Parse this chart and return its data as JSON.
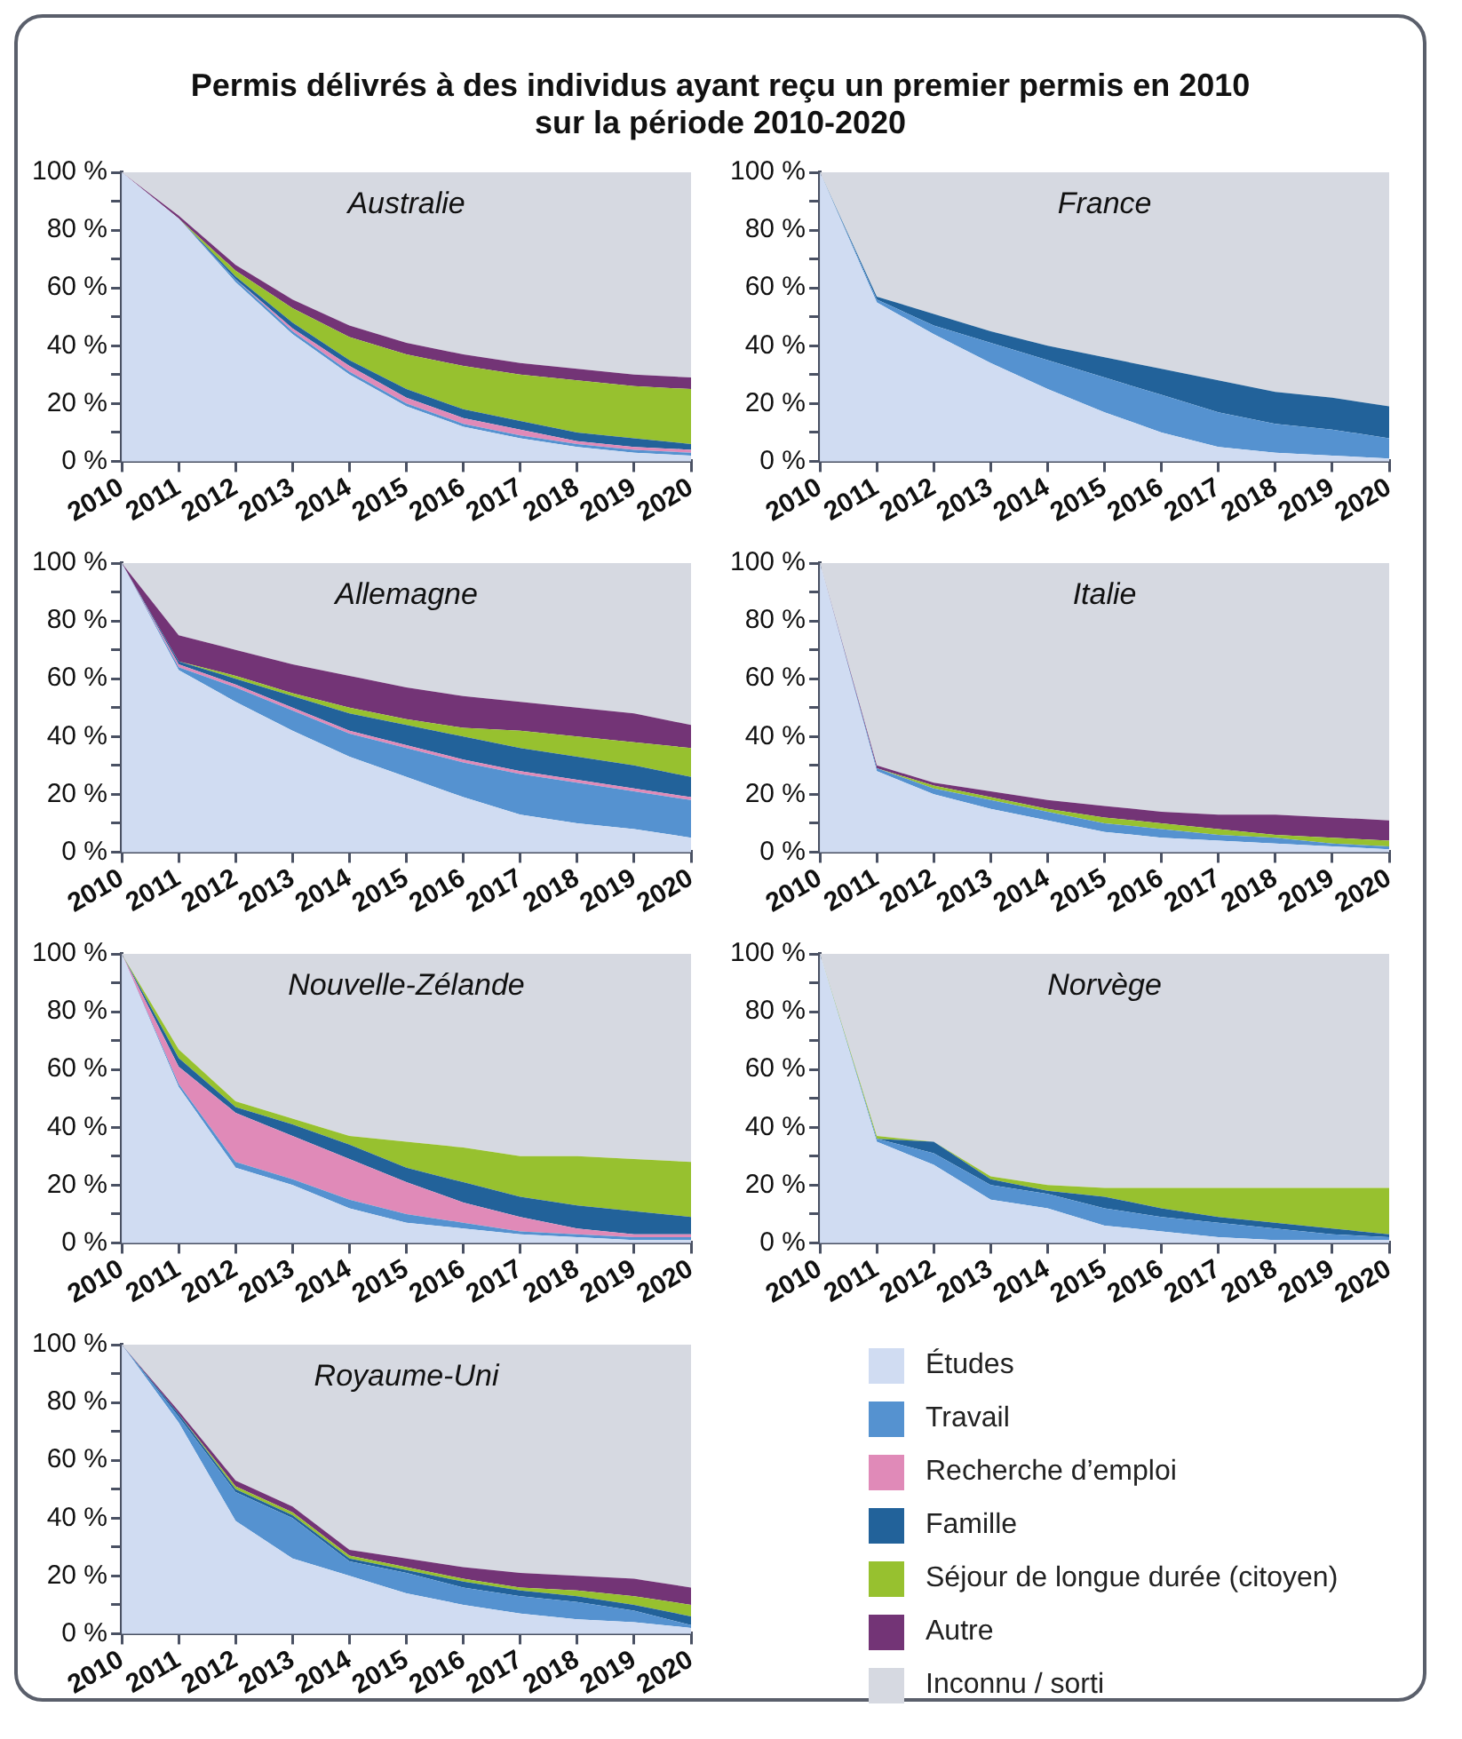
{
  "chart_data": [
    {
      "type": "other",
      "title": "Permis délivrés à des individus ayant reçu un premier permis en 2010\nsur la période 2010-2020"
    },
    {
      "type": "area",
      "stacked": true,
      "title": "Australie",
      "legend": "bottom right",
      "categories": [
        "2010",
        "2011",
        "2012",
        "2013",
        "2014",
        "2015",
        "2016",
        "2017",
        "2018",
        "2019",
        "2020"
      ],
      "ylim": [
        0,
        100
      ],
      "yticks": [
        {
          "value": 0,
          "label": "0 %"
        },
        {
          "value": 10,
          "label": null
        },
        {
          "value": 20,
          "label": "20 %"
        },
        {
          "value": 30,
          "label": null
        },
        {
          "value": 40,
          "label": "40 %"
        },
        {
          "value": 50,
          "label": null
        },
        {
          "value": 60,
          "label": "60 %"
        },
        {
          "value": 70,
          "label": null
        },
        {
          "value": 80,
          "label": "80 %"
        },
        {
          "value": 90,
          "label": null
        },
        {
          "value": 100,
          "label": "100 %"
        }
      ],
      "marker": "none",
      "series": [
        {
          "name": "Études",
          "color": "#d0dcf2",
          "values": [
            100,
            84,
            62,
            44,
            30,
            19,
            12,
            8,
            5,
            3,
            2
          ]
        },
        {
          "name": "Travail",
          "color": "#5592d0",
          "values": [
            0,
            0,
            1,
            1,
            1,
            1,
            1,
            1,
            1,
            1,
            1
          ]
        },
        {
          "name": "Recherche d’emploi",
          "color": "#e08ab8",
          "values": [
            0,
            0,
            0,
            1,
            2,
            2,
            2,
            2,
            1,
            1,
            1
          ]
        },
        {
          "name": "Famille",
          "color": "#22629a",
          "values": [
            0,
            0,
            1,
            2,
            2,
            3,
            3,
            3,
            3,
            3,
            2
          ]
        },
        {
          "name": "Séjour de longue durée (citoyen)",
          "color": "#97c12f",
          "values": [
            0,
            0,
            2,
            5,
            8,
            12,
            15,
            16,
            18,
            18,
            19
          ]
        },
        {
          "name": "Autre",
          "color": "#733476",
          "values": [
            0,
            1,
            2,
            3,
            4,
            4,
            4,
            4,
            4,
            4,
            4
          ]
        },
        {
          "name": "Inconnu / sorti",
          "color": "#d6d9e1",
          "values": [
            0,
            15,
            32,
            44,
            53,
            59,
            63,
            66,
            68,
            70,
            71
          ]
        }
      ]
    },
    {
      "type": "area",
      "stacked": true,
      "title": "France",
      "categories": [
        "2010",
        "2011",
        "2012",
        "2013",
        "2014",
        "2015",
        "2016",
        "2017",
        "2018",
        "2019",
        "2020"
      ],
      "ylim": [
        0,
        100
      ],
      "yticks": [
        {
          "value": 0,
          "label": "0 %"
        },
        {
          "value": 10,
          "label": null
        },
        {
          "value": 20,
          "label": "20 %"
        },
        {
          "value": 30,
          "label": null
        },
        {
          "value": 40,
          "label": "40 %"
        },
        {
          "value": 50,
          "label": null
        },
        {
          "value": 60,
          "label": "60 %"
        },
        {
          "value": 70,
          "label": null
        },
        {
          "value": 80,
          "label": "80 %"
        },
        {
          "value": 90,
          "label": null
        },
        {
          "value": 100,
          "label": "100 %"
        }
      ],
      "marker": "none",
      "series": [
        {
          "color": "#d0dcf2",
          "values": [
            100,
            55,
            44,
            34,
            25,
            17,
            10,
            5,
            3,
            2,
            1
          ]
        },
        {
          "color": "#5592d0",
          "values": [
            0,
            1,
            3,
            7,
            10,
            12,
            13,
            12,
            10,
            9,
            7
          ]
        },
        {
          "color": "#22629a",
          "values": [
            0,
            1,
            4,
            4,
            5,
            7,
            9,
            11,
            11,
            11,
            11
          ]
        },
        {
          "color": "#d6d9e1",
          "values": [
            0,
            43,
            49,
            55,
            60,
            64,
            68,
            72,
            76,
            78,
            81
          ]
        }
      ]
    },
    {
      "type": "area",
      "stacked": true,
      "title": "Allemagne",
      "categories": [
        "2010",
        "2011",
        "2012",
        "2013",
        "2014",
        "2015",
        "2016",
        "2017",
        "2018",
        "2019",
        "2020"
      ],
      "ylim": [
        0,
        100
      ],
      "yticks": [
        {
          "value": 0,
          "label": "0 %"
        },
        {
          "value": 10,
          "label": null
        },
        {
          "value": 20,
          "label": "20 %"
        },
        {
          "value": 30,
          "label": null
        },
        {
          "value": 40,
          "label": "40 %"
        },
        {
          "value": 50,
          "label": null
        },
        {
          "value": 60,
          "label": "60 %"
        },
        {
          "value": 70,
          "label": null
        },
        {
          "value": 80,
          "label": "80 %"
        },
        {
          "value": 90,
          "label": null
        },
        {
          "value": 100,
          "label": "100 %"
        }
      ],
      "marker": "none",
      "series": [
        {
          "color": "#d0dcf2",
          "values": [
            100,
            63,
            52,
            42,
            33,
            26,
            19,
            13,
            10,
            8,
            5
          ]
        },
        {
          "color": "#5592d0",
          "values": [
            0,
            1,
            5,
            7,
            8,
            10,
            12,
            14,
            14,
            13,
            13
          ]
        },
        {
          "color": "#e08ab8",
          "values": [
            0,
            1,
            1,
            1,
            1,
            1,
            1,
            1,
            1,
            1,
            1
          ]
        },
        {
          "color": "#22629a",
          "values": [
            0,
            1,
            2,
            4,
            6,
            7,
            8,
            8,
            8,
            8,
            7
          ]
        },
        {
          "color": "#97c12f",
          "values": [
            0,
            0,
            1,
            1,
            2,
            2,
            3,
            6,
            7,
            8,
            10
          ]
        },
        {
          "color": "#733476",
          "values": [
            0,
            9,
            9,
            10,
            11,
            11,
            11,
            10,
            10,
            10,
            8
          ]
        },
        {
          "color": "#d6d9e1",
          "values": [
            0,
            25,
            30,
            35,
            39,
            43,
            46,
            48,
            50,
            52,
            56
          ]
        }
      ]
    },
    {
      "type": "area",
      "stacked": true,
      "title": "Italie",
      "categories": [
        "2010",
        "2011",
        "2012",
        "2013",
        "2014",
        "2015",
        "2016",
        "2017",
        "2018",
        "2019",
        "2020"
      ],
      "ylim": [
        0,
        100
      ],
      "yticks": [
        {
          "value": 0,
          "label": "0 %"
        },
        {
          "value": 10,
          "label": null
        },
        {
          "value": 20,
          "label": "20 %"
        },
        {
          "value": 30,
          "label": null
        },
        {
          "value": 40,
          "label": "40 %"
        },
        {
          "value": 50,
          "label": null
        },
        {
          "value": 60,
          "label": "60 %"
        },
        {
          "value": 70,
          "label": null
        },
        {
          "value": 80,
          "label": "80 %"
        },
        {
          "value": 90,
          "label": null
        },
        {
          "value": 100,
          "label": "100 %"
        }
      ],
      "marker": "none",
      "series": [
        {
          "color": "#d0dcf2",
          "values": [
            100,
            28,
            20,
            15,
            11,
            7,
            5,
            4,
            3,
            2,
            1
          ]
        },
        {
          "color": "#5592d0",
          "values": [
            0,
            1,
            2,
            3,
            3,
            3,
            3,
            2,
            2,
            1,
            1
          ]
        },
        {
          "color": "#97c12f",
          "values": [
            0,
            0,
            1,
            1,
            1,
            2,
            2,
            2,
            1,
            2,
            2
          ]
        },
        {
          "color": "#733476",
          "values": [
            0,
            1,
            1,
            2,
            3,
            4,
            4,
            5,
            7,
            7,
            7
          ]
        },
        {
          "color": "#d6d9e1",
          "values": [
            0,
            70,
            76,
            79,
            82,
            84,
            86,
            87,
            87,
            88,
            89
          ]
        }
      ]
    },
    {
      "type": "area",
      "stacked": true,
      "title": "Nouvelle-Zélande",
      "categories": [
        "2010",
        "2011",
        "2012",
        "2013",
        "2014",
        "2015",
        "2016",
        "2017",
        "2018",
        "2019",
        "2020"
      ],
      "ylim": [
        0,
        100
      ],
      "yticks": [
        {
          "value": 0,
          "label": "0 %"
        },
        {
          "value": 10,
          "label": null
        },
        {
          "value": 20,
          "label": "20 %"
        },
        {
          "value": 30,
          "label": null
        },
        {
          "value": 40,
          "label": "40 %"
        },
        {
          "value": 50,
          "label": null
        },
        {
          "value": 60,
          "label": "60 %"
        },
        {
          "value": 70,
          "label": null
        },
        {
          "value": 80,
          "label": "80 %"
        },
        {
          "value": 90,
          "label": null
        },
        {
          "value": 100,
          "label": "100 %"
        }
      ],
      "marker": "none",
      "series": [
        {
          "color": "#d0dcf2",
          "values": [
            100,
            54,
            26,
            20,
            12,
            7,
            5,
            3,
            2,
            1,
            1
          ]
        },
        {
          "color": "#5592d0",
          "values": [
            0,
            1,
            2,
            2,
            3,
            3,
            2,
            1,
            1,
            1,
            1
          ]
        },
        {
          "color": "#e08ab8",
          "values": [
            0,
            6,
            17,
            15,
            14,
            11,
            7,
            5,
            2,
            1,
            1
          ]
        },
        {
          "color": "#22629a",
          "values": [
            0,
            3,
            2,
            4,
            5,
            5,
            7,
            7,
            8,
            8,
            6
          ]
        },
        {
          "color": "#97c12f",
          "values": [
            0,
            3,
            2,
            2,
            3,
            9,
            12,
            14,
            17,
            18,
            19
          ]
        },
        {
          "color": "#d6d9e1",
          "values": [
            0,
            33,
            51,
            57,
            63,
            65,
            67,
            70,
            70,
            71,
            72
          ]
        }
      ]
    },
    {
      "type": "area",
      "stacked": true,
      "title": "Norvège",
      "categories": [
        "2010",
        "2011",
        "2012",
        "2013",
        "2014",
        "2015",
        "2016",
        "2017",
        "2018",
        "2019",
        "2020"
      ],
      "ylim": [
        0,
        100
      ],
      "yticks": [
        {
          "value": 0,
          "label": "0 %"
        },
        {
          "value": 10,
          "label": null
        },
        {
          "value": 20,
          "label": "20 %"
        },
        {
          "value": 30,
          "label": null
        },
        {
          "value": 40,
          "label": "40 %"
        },
        {
          "value": 50,
          "label": null
        },
        {
          "value": 60,
          "label": "60 %"
        },
        {
          "value": 70,
          "label": null
        },
        {
          "value": 80,
          "label": "80 %"
        },
        {
          "value": 90,
          "label": null
        },
        {
          "value": 100,
          "label": "100 %"
        }
      ],
      "marker": "none",
      "series": [
        {
          "color": "#d0dcf2",
          "values": [
            100,
            35,
            27,
            15,
            12,
            6,
            4,
            2,
            1,
            1,
            1
          ]
        },
        {
          "color": "#5592d0",
          "values": [
            0,
            1,
            4,
            5,
            5,
            6,
            5,
            5,
            4,
            2,
            1
          ]
        },
        {
          "color": "#22629a",
          "values": [
            0,
            0,
            4,
            2,
            1,
            4,
            3,
            2,
            2,
            2,
            1
          ]
        },
        {
          "color": "#97c12f",
          "values": [
            0,
            1,
            0,
            1,
            2,
            3,
            7,
            10,
            12,
            14,
            16
          ]
        },
        {
          "color": "#d6d9e1",
          "values": [
            0,
            63,
            65,
            77,
            80,
            81,
            81,
            81,
            81,
            81,
            81
          ]
        }
      ]
    },
    {
      "type": "area",
      "stacked": true,
      "title": "Royaume-Uni",
      "categories": [
        "2010",
        "2011",
        "2012",
        "2013",
        "2014",
        "2015",
        "2016",
        "2017",
        "2018",
        "2019",
        "2020"
      ],
      "ylim": [
        0,
        100
      ],
      "yticks": [
        {
          "value": 0,
          "label": "0 %"
        },
        {
          "value": 10,
          "label": null
        },
        {
          "value": 20,
          "label": "20 %"
        },
        {
          "value": 30,
          "label": null
        },
        {
          "value": 40,
          "label": "40 %"
        },
        {
          "value": 50,
          "label": null
        },
        {
          "value": 60,
          "label": "60 %"
        },
        {
          "value": 70,
          "label": null
        },
        {
          "value": 80,
          "label": "80 %"
        },
        {
          "value": 90,
          "label": null
        },
        {
          "value": 100,
          "label": "100 %"
        }
      ],
      "marker": "none",
      "series": [
        {
          "color": "#d0dcf2",
          "values": [
            100,
            73,
            39,
            26,
            20,
            14,
            10,
            7,
            5,
            4,
            2
          ]
        },
        {
          "color": "#5592d0",
          "values": [
            0,
            2,
            10,
            14,
            5,
            7,
            6,
            6,
            6,
            4,
            1
          ]
        },
        {
          "color": "#22629a",
          "values": [
            0,
            1,
            1,
            1,
            1,
            1,
            2,
            2,
            2,
            2,
            3
          ]
        },
        {
          "color": "#97c12f",
          "values": [
            0,
            0,
            1,
            1,
            1,
            1,
            1,
            1,
            2,
            3,
            4
          ]
        },
        {
          "color": "#733476",
          "values": [
            0,
            1,
            2,
            2,
            2,
            3,
            4,
            5,
            5,
            6,
            6
          ]
        },
        {
          "color": "#d6d9e1",
          "values": [
            0,
            23,
            47,
            56,
            71,
            74,
            77,
            79,
            80,
            81,
            84
          ]
        }
      ]
    }
  ]
}
